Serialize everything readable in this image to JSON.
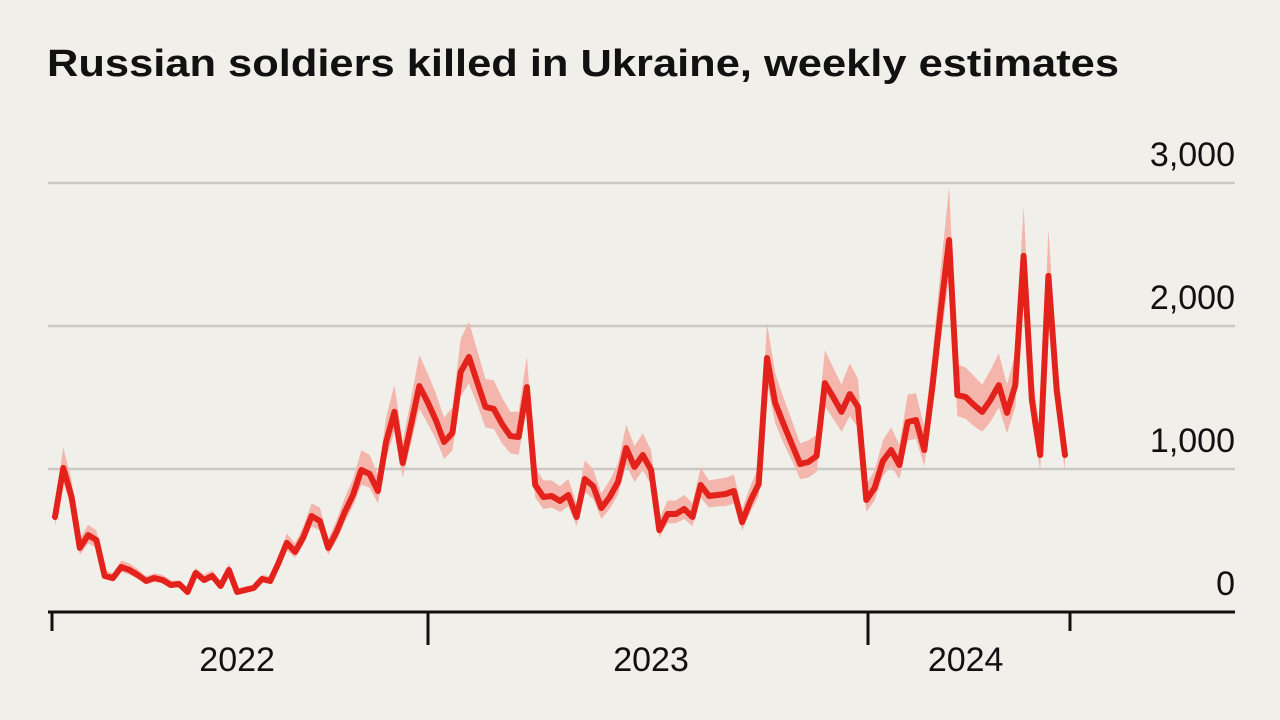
{
  "chart_data": {
    "type": "line",
    "title": "Russian soldiers killed in Ukraine, weekly estimates",
    "categories": [
      null,
      null,
      null,
      null,
      null,
      null,
      null,
      null,
      null,
      null,
      null,
      null,
      null,
      null,
      null,
      null,
      null,
      null,
      null,
      null,
      null,
      null,
      "2022",
      null,
      null,
      null,
      null,
      null,
      null,
      null,
      null,
      null,
      null,
      null,
      null,
      null,
      null,
      null,
      null,
      null,
      null,
      null,
      null,
      null,
      null,
      null,
      null,
      null,
      null,
      null,
      null,
      null,
      null,
      null,
      null,
      null,
      null,
      null,
      null,
      null,
      null,
      null,
      null,
      null,
      null,
      null,
      null,
      null,
      null,
      null,
      null,
      null,
      "2023",
      null,
      null,
      null,
      null,
      null,
      null,
      null,
      null,
      null,
      null,
      null,
      null,
      null,
      null,
      null,
      null,
      null,
      null,
      null,
      null,
      null,
      null,
      null,
      null,
      null,
      null,
      null,
      null,
      null,
      null,
      null,
      null,
      null,
      null,
      null,
      null,
      null,
      "2024",
      null,
      null,
      null,
      null,
      null,
      null,
      null,
      null,
      null,
      null,
      null,
      null
    ],
    "values": [
      664,
      1007,
      804,
      448,
      538,
      503,
      252,
      238,
      315,
      294,
      259,
      217,
      238,
      224,
      189,
      196,
      140,
      273,
      224,
      252,
      182,
      294,
      140,
      154,
      168,
      231,
      217,
      343,
      483,
      420,
      524,
      671,
      636,
      448,
      559,
      699,
      818,
      993,
      965,
      846,
      1189,
      1399,
      1042,
      1308,
      1580,
      1469,
      1343,
      1189,
      1252,
      1678,
      1783,
      1608,
      1434,
      1420,
      1315,
      1231,
      1224,
      1573,
      888,
      804,
      811,
      776,
      818,
      664,
      930,
      881,
      727,
      804,
      909,
      1147,
      1014,
      1098,
      993,
      573,
      685,
      685,
      720,
      664,
      888,
      811,
      818,
      825,
      846,
      629,
      776,
      895,
      1776,
      1462,
      1315,
      1175,
      1035,
      1049,
      1091,
      1601,
      1503,
      1399,
      1524,
      1434,
      783,
      867,
      1056,
      1133,
      1028,
      1329,
      1343,
      1133,
      1580,
      2112,
      2601,
      1517,
      1503,
      1448,
      1399,
      1483,
      1587,
      1392,
      1587,
      2490,
      1483,
      1098,
      2350,
      1552,
      1098
    ],
    "band_low": [
      600,
      910,
      720,
      400,
      480,
      450,
      230,
      210,
      280,
      260,
      230,
      200,
      210,
      200,
      170,
      180,
      130,
      250,
      200,
      230,
      160,
      260,
      130,
      140,
      150,
      210,
      200,
      310,
      430,
      380,
      470,
      600,
      570,
      400,
      500,
      630,
      740,
      890,
      870,
      760,
      1070,
      1260,
      940,
      1180,
      1420,
      1320,
      1210,
      1070,
      1130,
      1510,
      1600,
      1450,
      1290,
      1280,
      1180,
      1110,
      1100,
      1420,
      800,
      720,
      730,
      700,
      740,
      600,
      840,
      790,
      650,
      720,
      820,
      1030,
      910,
      990,
      890,
      520,
      620,
      620,
      650,
      600,
      800,
      730,
      740,
      740,
      760,
      570,
      700,
      810,
      1600,
      1320,
      1180,
      1060,
      930,
      940,
      980,
      1440,
      1350,
      1260,
      1370,
      1290,
      700,
      780,
      950,
      1020,
      930,
      1200,
      1210,
      1020,
      1420,
      1900,
      2340,
      1370,
      1350,
      1300,
      1260,
      1330,
      1430,
      1250,
      1430,
      2240,
      1330,
      990,
      2120,
      1400,
      990
    ],
    "band_high": [
      760,
      1150,
      920,
      510,
      610,
      570,
      290,
      270,
      360,
      340,
      300,
      250,
      270,
      260,
      220,
      220,
      160,
      310,
      260,
      290,
      210,
      340,
      160,
      180,
      190,
      260,
      250,
      390,
      550,
      480,
      600,
      760,
      730,
      510,
      640,
      800,
      930,
      1130,
      1100,
      960,
      1360,
      1590,
      1190,
      1490,
      1800,
      1670,
      1530,
      1360,
      1430,
      1910,
      2030,
      1830,
      1630,
      1620,
      1500,
      1400,
      1400,
      1790,
      1010,
      920,
      920,
      880,
      930,
      760,
      1060,
      1000,
      830,
      920,
      1040,
      1310,
      1160,
      1250,
      1130,
      650,
      780,
      780,
      820,
      760,
      1010,
      920,
      930,
      940,
      960,
      720,
      880,
      1020,
      2020,
      1670,
      1500,
      1340,
      1180,
      1200,
      1240,
      1830,
      1710,
      1590,
      1740,
      1630,
      890,
      990,
      1200,
      1290,
      1170,
      1520,
      1530,
      1290,
      1800,
      2410,
      2970,
      1730,
      1710,
      1650,
      1590,
      1690,
      1810,
      1590,
      1810,
      2840,
      1690,
      1250,
      2680,
      1770,
      1250
    ],
    "color": "#e3231b",
    "band_color": "#f4b6ac",
    "ylim": [
      0,
      3000
    ],
    "yticks": [
      0,
      {
        "value": 1000,
        "label": "1,000"
      },
      {
        "value": 2000,
        "label": "2,000"
      },
      {
        "value": 3000,
        "label": "3,000"
      }
    ],
    "grid": true
  }
}
